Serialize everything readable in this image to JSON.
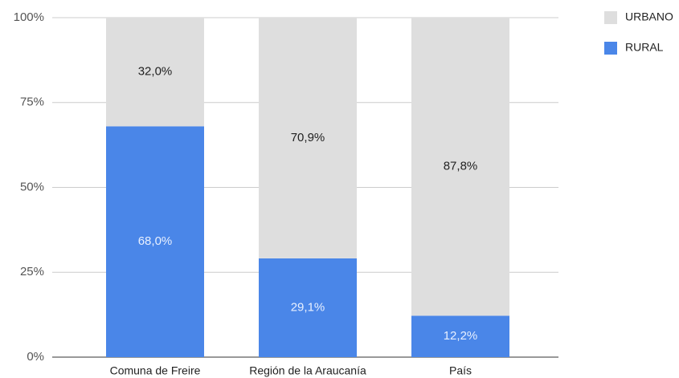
{
  "chart_data": {
    "type": "stacked_bar",
    "categories": [
      "Comuna de Freire",
      "Región de la Araucanía",
      "País"
    ],
    "series": [
      {
        "name": "RURAL",
        "color": "#4a86e8",
        "values": [
          68.0,
          29.1,
          12.2
        ],
        "value_labels": [
          "68,0%",
          "29,1%",
          "12,2%"
        ]
      },
      {
        "name": "URBANO",
        "color": "#dedede",
        "values": [
          32.0,
          70.9,
          87.8
        ],
        "value_labels": [
          "32,0%",
          "70,9%",
          "87,8%"
        ]
      }
    ],
    "ylim": [
      0,
      100
    ],
    "yticks": [
      {
        "value": 0,
        "label": "0%"
      },
      {
        "value": 25,
        "label": "25%"
      },
      {
        "value": 50,
        "label": "50%"
      },
      {
        "value": 75,
        "label": "75%"
      },
      {
        "value": 100,
        "label": "100%"
      }
    ],
    "grid": true,
    "legend": "right"
  }
}
